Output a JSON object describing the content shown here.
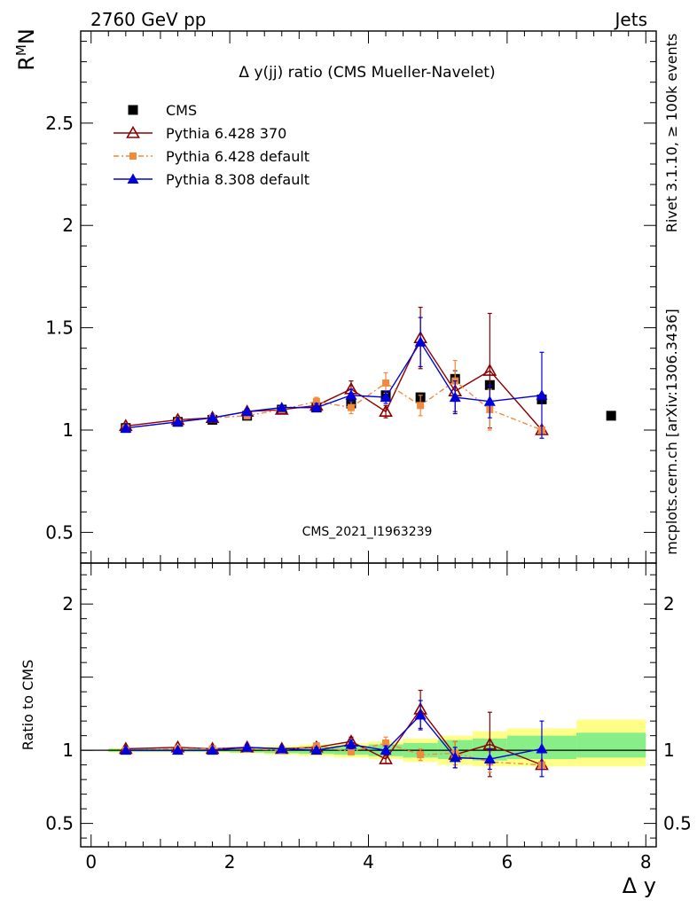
{
  "header": {
    "energy_label": "2760 GeV pp",
    "process_label": "Jets",
    "rivet_label": "Rivet 3.1.10, ≥ 100k events",
    "mcplots_label": "mcplots.cern.ch [arXiv:1306.3436]",
    "analysis_id": "CMS_2021_I1963239"
  },
  "chart_data": [
    {
      "type": "line",
      "title": "Δ y(jj) ratio (CMS Mueller-Navelet)",
      "ylabel": "R^M_N",
      "xlabel": "",
      "xlim": [
        -0.15,
        8.15
      ],
      "ylim": [
        0.35,
        2.95
      ],
      "yticks": [
        0.5,
        1,
        1.5,
        2,
        2.5
      ],
      "ytick_labels": [
        "0.5",
        "1",
        "1.5",
        "2",
        "2.5"
      ],
      "legend_position": "top-left",
      "series": [
        {
          "name": "CMS",
          "color": "#000000",
          "marker": "square",
          "x": [
            0.5,
            1.25,
            1.75,
            2.25,
            2.75,
            3.25,
            3.75,
            4.25,
            4.75,
            5.25,
            5.75,
            6.5,
            7.5
          ],
          "y": [
            1.01,
            1.04,
            1.05,
            1.07,
            1.1,
            1.11,
            1.13,
            1.17,
            1.16,
            1.25,
            1.22,
            1.15,
            1.07
          ]
        },
        {
          "name": "Pythia 6.428 370",
          "color": "#8b0000",
          "marker": "triangle-open",
          "x": [
            0.5,
            1.25,
            1.75,
            2.25,
            2.75,
            3.25,
            3.75,
            4.25,
            4.75,
            5.25,
            5.75,
            6.5
          ],
          "y": [
            1.02,
            1.05,
            1.06,
            1.09,
            1.1,
            1.12,
            1.2,
            1.09,
            1.45,
            1.19,
            1.29,
            1.0
          ],
          "err": [
            0.01,
            0.01,
            0.01,
            0.01,
            0.01,
            0.02,
            0.04,
            0.03,
            0.15,
            0.1,
            0.28,
            0.01
          ]
        },
        {
          "name": "Pythia 6.428 default",
          "color": "#f08a3c",
          "marker": "square-small",
          "x": [
            0.5,
            1.25,
            1.75,
            2.25,
            2.75,
            3.25,
            3.75,
            4.25,
            4.75,
            5.25,
            5.75,
            6.5
          ],
          "y": [
            1.01,
            1.04,
            1.06,
            1.07,
            1.1,
            1.14,
            1.11,
            1.23,
            1.12,
            1.24,
            1.1,
            1.0
          ],
          "err": [
            0.01,
            0.01,
            0.01,
            0.01,
            0.01,
            0.02,
            0.03,
            0.05,
            0.05,
            0.1,
            0.1,
            0.01
          ]
        },
        {
          "name": "Pythia 8.308 default",
          "color": "#0000dd",
          "marker": "triangle",
          "x": [
            0.5,
            1.25,
            1.75,
            2.25,
            2.75,
            3.25,
            3.75,
            4.25,
            4.75,
            5.25,
            5.75,
            6.5
          ],
          "y": [
            1.01,
            1.04,
            1.06,
            1.09,
            1.11,
            1.11,
            1.17,
            1.16,
            1.43,
            1.16,
            1.14,
            1.17
          ],
          "err": [
            0.01,
            0.01,
            0.01,
            0.01,
            0.01,
            0.02,
            0.03,
            0.03,
            0.12,
            0.08,
            0.08,
            0.21
          ]
        }
      ]
    },
    {
      "type": "line",
      "title": "",
      "ylabel": "Ratio to CMS",
      "xlabel": "Δ y",
      "xlim": [
        -0.15,
        8.15
      ],
      "ylim": [
        0.34,
        2.28
      ],
      "yticks": [
        0.5,
        1,
        2
      ],
      "ytick_labels": [
        "0.5",
        "1",
        "2"
      ],
      "xticks": [
        0,
        2,
        4,
        6,
        8
      ],
      "xtick_labels": [
        "0",
        "2",
        "4",
        "6",
        "8"
      ],
      "bands": {
        "x_edges": [
          0.25,
          1.0,
          1.5,
          2.0,
          2.5,
          3.0,
          3.5,
          4.0,
          4.5,
          5.0,
          5.5,
          6.0,
          7.0,
          8.0
        ],
        "inner_color": "#88ee88",
        "outer_color": "#ffff88",
        "inner": [
          [
            0.99,
            1.01
          ],
          [
            0.99,
            1.01
          ],
          [
            0.99,
            1.01
          ],
          [
            0.985,
            1.015
          ],
          [
            0.98,
            1.02
          ],
          [
            0.975,
            1.025
          ],
          [
            0.97,
            1.03
          ],
          [
            0.96,
            1.04
          ],
          [
            0.95,
            1.05
          ],
          [
            0.94,
            1.07
          ],
          [
            0.93,
            1.08
          ],
          [
            0.94,
            1.1
          ],
          [
            0.95,
            1.12
          ]
        ],
        "outer": [
          [
            0.985,
            1.015
          ],
          [
            0.985,
            1.015
          ],
          [
            0.985,
            1.015
          ],
          [
            0.98,
            1.02
          ],
          [
            0.97,
            1.03
          ],
          [
            0.96,
            1.04
          ],
          [
            0.95,
            1.05
          ],
          [
            0.94,
            1.06
          ],
          [
            0.92,
            1.08
          ],
          [
            0.9,
            1.1
          ],
          [
            0.89,
            1.13
          ],
          [
            0.89,
            1.15
          ],
          [
            0.89,
            1.21
          ]
        ]
      },
      "series": [
        {
          "name": "Pythia 6.428 370",
          "color": "#8b0000",
          "marker": "triangle-open",
          "x": [
            0.5,
            1.25,
            1.75,
            2.25,
            2.75,
            3.25,
            3.75,
            4.25,
            4.75,
            5.25,
            5.75,
            6.5
          ],
          "y": [
            1.01,
            1.02,
            1.01,
            1.02,
            1.01,
            1.02,
            1.06,
            0.94,
            1.28,
            0.97,
            1.04,
            0.9
          ],
          "err": [
            0.01,
            0.01,
            0.01,
            0.01,
            0.01,
            0.02,
            0.03,
            0.03,
            0.13,
            0.09,
            0.22,
            0.01
          ]
        },
        {
          "name": "Pythia 6.428 default",
          "color": "#f08a3c",
          "marker": "square-small",
          "x": [
            0.5,
            1.25,
            1.75,
            2.25,
            2.75,
            3.25,
            3.75,
            4.25,
            4.75,
            5.25,
            5.75,
            6.5
          ],
          "y": [
            1.0,
            1.01,
            1.01,
            1.01,
            1.0,
            1.03,
            0.99,
            1.05,
            0.97,
            0.98,
            0.92,
            0.9
          ],
          "err": [
            0.01,
            0.01,
            0.01,
            0.01,
            0.01,
            0.02,
            0.02,
            0.04,
            0.04,
            0.08,
            0.07,
            0.01
          ]
        },
        {
          "name": "Pythia 8.308 default",
          "color": "#0000dd",
          "marker": "triangle",
          "x": [
            0.5,
            1.25,
            1.75,
            2.25,
            2.75,
            3.25,
            3.75,
            4.25,
            4.75,
            5.25,
            5.75,
            6.5
          ],
          "y": [
            1.0,
            1.0,
            1.0,
            1.02,
            1.01,
            1.0,
            1.04,
            1.0,
            1.24,
            0.95,
            0.94,
            1.01
          ],
          "err": [
            0.01,
            0.01,
            0.01,
            0.01,
            0.01,
            0.02,
            0.03,
            0.03,
            0.1,
            0.07,
            0.07,
            0.19
          ]
        }
      ]
    }
  ]
}
